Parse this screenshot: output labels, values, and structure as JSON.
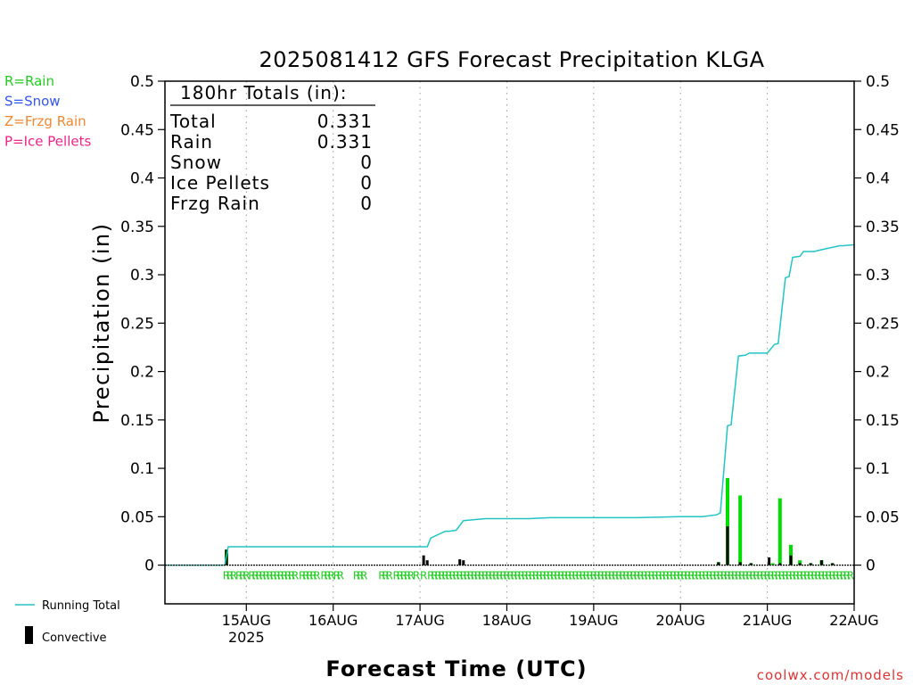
{
  "chart_data": {
    "type": "bar",
    "title": "2025081412 GFS Forecast Precipitation KLGA",
    "ylabel": "Precipitation (in)",
    "xlabel": "Forecast Time (UTC)",
    "ylim": [
      -0.04,
      0.5
    ],
    "yticks": [
      0,
      0.05,
      0.1,
      0.15,
      0.2,
      0.25,
      0.3,
      0.35,
      0.4,
      0.45,
      0.5
    ],
    "ytick_labels": [
      "0",
      "0.05",
      "0.1",
      "0.15",
      "0.2",
      "0.25",
      "0.3",
      "0.35",
      "0.4",
      "0.45",
      "0.5"
    ],
    "xlim_hours": [
      -10.5,
      180
    ],
    "xticks": [
      {
        "hour": 12,
        "label": "15AUG",
        "sublabel": "2025"
      },
      {
        "hour": 36,
        "label": "16AUG",
        "sublabel": ""
      },
      {
        "hour": 60,
        "label": "17AUG",
        "sublabel": ""
      },
      {
        "hour": 84,
        "label": "18AUG",
        "sublabel": ""
      },
      {
        "hour": 108,
        "label": "19AUG",
        "sublabel": ""
      },
      {
        "hour": 132,
        "label": "20AUG",
        "sublabel": ""
      },
      {
        "hour": 156,
        "label": "21AUG",
        "sublabel": ""
      },
      {
        "hour": 180,
        "label": "22AUG",
        "sublabel": ""
      }
    ],
    "grid": "vertical dotted at day boundaries",
    "series": [
      {
        "name": "Running Total",
        "color": "#22c4c4",
        "x": [
          -10.5,
          0,
          6,
          7,
          60,
          62,
          63,
          67,
          68,
          70,
          72,
          78,
          90,
          96,
          120,
          132,
          138,
          142,
          143,
          145,
          146,
          148,
          150,
          151,
          153,
          156,
          158,
          159,
          161,
          162,
          163,
          165,
          166,
          169,
          170,
          176,
          177,
          180
        ],
        "y": [
          0,
          0,
          0,
          0.019,
          0.019,
          0.019,
          0.028,
          0.035,
          0.035,
          0.036,
          0.046,
          0.048,
          0.048,
          0.049,
          0.049,
          0.05,
          0.05,
          0.052,
          0.054,
          0.144,
          0.145,
          0.216,
          0.217,
          0.219,
          0.219,
          0.219,
          0.228,
          0.229,
          0.297,
          0.298,
          0.318,
          0.319,
          0.324,
          0.324,
          0.325,
          0.33,
          0.33,
          0.331
        ]
      },
      {
        "name": "Rain",
        "color": "#00dd00",
        "x": [
          6.5,
          142.5,
          145,
          148.5,
          151.5,
          157.5,
          159.5,
          162.5,
          165,
          168,
          171,
          174
        ],
        "values": [
          0.016,
          0.003,
          0.09,
          0.072,
          0.002,
          0.002,
          0.069,
          0.021,
          0.005,
          0.002,
          0.005,
          0.002
        ]
      },
      {
        "name": "Convective",
        "color": "#000000",
        "x": [
          6.5,
          61,
          62,
          71,
          72,
          142.5,
          145,
          148.5,
          151.5,
          156.5,
          159.5,
          162.5,
          165,
          168,
          171,
          174
        ],
        "values": [
          0.016,
          0.01,
          0.005,
          0.006,
          0.005,
          0.003,
          0.04,
          0.003,
          0.002,
          0.008,
          0.002,
          0.01,
          0.002,
          0.002,
          0.005,
          0.002
        ]
      }
    ],
    "rain_marker_hours": [
      6.5,
      7.5,
      8.5,
      10,
      11,
      12,
      13.5,
      14.5,
      15.5,
      16.5,
      17.5,
      18.5,
      19.5,
      20.5,
      21.5,
      22.5,
      23.5,
      24.5,
      25.5,
      27.5,
      28.5,
      29.5,
      30.5,
      31.5,
      33.5,
      34.5,
      35.5,
      37,
      38,
      42.5,
      43.5,
      44.5,
      49.5,
      50.5,
      51.5,
      53.5,
      54.5,
      55.5,
      56.5,
      57.5,
      59,
      61,
      63,
      64,
      65,
      66,
      67,
      68,
      69,
      70,
      71,
      72,
      73,
      74,
      75,
      76,
      77,
      78,
      79,
      80,
      81,
      82,
      83,
      84,
      85,
      86,
      87,
      88,
      89,
      90,
      91,
      92,
      93,
      94,
      95,
      96,
      97,
      98,
      99,
      100,
      101,
      102,
      103,
      104,
      105,
      106,
      107,
      108,
      109,
      110,
      111,
      112,
      113,
      114,
      115,
      116,
      117,
      118,
      119,
      120,
      121,
      122,
      123,
      124,
      125,
      126,
      127,
      128,
      129,
      130,
      131,
      132,
      133,
      134,
      135,
      136,
      137,
      138,
      139,
      140,
      141,
      142,
      143,
      144,
      145,
      146,
      147,
      148,
      149,
      150,
      151,
      152,
      153,
      154,
      155,
      156,
      157,
      158,
      159,
      160,
      161,
      162,
      163,
      164,
      165,
      166,
      167,
      168,
      169,
      170,
      171,
      172,
      173,
      174,
      175,
      176,
      177,
      178,
      179
    ],
    "rain_markers_text_hint": "R",
    "totals": {
      "heading": "180hr Totals (in):",
      "rows": [
        {
          "label": "Total",
          "value": "0.331"
        },
        {
          "label": "Rain",
          "value": "0.331"
        },
        {
          "label": "Snow",
          "value": "0"
        },
        {
          "label": "Ice Pellets",
          "value": "0"
        },
        {
          "label": "Frzg Rain",
          "value": "0"
        }
      ]
    },
    "legend_top": [
      {
        "text": "R=Rain",
        "color": "#22cc22"
      },
      {
        "text": "S=Snow",
        "color": "#3355ee"
      },
      {
        "text": "Z=Frzg Rain",
        "color": "#ee8833"
      },
      {
        "text": "P=Ice Pellets",
        "color": "#ee2288"
      }
    ],
    "legend_bottom": [
      {
        "text": "Running Total",
        "color": "#22c4c4",
        "kind": "line"
      },
      {
        "text": "Convective",
        "color": "#000000",
        "kind": "bar"
      }
    ],
    "credit": {
      "text": "coolwx.com/models",
      "color": "#dd3333"
    }
  }
}
